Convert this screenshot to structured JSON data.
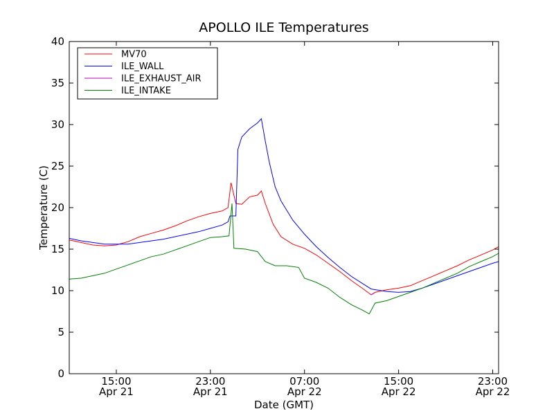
{
  "chart_data": {
    "type": "line",
    "title": "APOLLO ILE Temperatures",
    "xlabel": "Date (GMT)",
    "ylabel": "Temperature (C)",
    "xlim": [
      "Apr 21 11:00",
      "Apr 22 23:30"
    ],
    "ylim": [
      0,
      40
    ],
    "yticks": [
      0,
      5,
      10,
      15,
      20,
      25,
      30,
      35,
      40
    ],
    "xticks": [
      {
        "time": "Apr 21 15:00",
        "line1": "15:00",
        "line2": "Apr 21"
      },
      {
        "time": "Apr 21 23:00",
        "line1": "23:00",
        "line2": "Apr 21"
      },
      {
        "time": "Apr 22 07:00",
        "line1": "07:00",
        "line2": "Apr 22"
      },
      {
        "time": "Apr 22 15:00",
        "line1": "15:00",
        "line2": "Apr 22"
      },
      {
        "time": "Apr 22 23:00",
        "line1": "23:00",
        "line2": "Apr 22"
      }
    ],
    "grid": false,
    "legend_position": "top-left",
    "series": [
      {
        "name": "MV70",
        "color": "#ff0000",
        "points": [
          [
            "Apr 21 11:00",
            16.1
          ],
          [
            "Apr 21 12:00",
            15.8
          ],
          [
            "Apr 21 13:00",
            15.5
          ],
          [
            "Apr 21 14:00",
            15.4
          ],
          [
            "Apr 21 15:00",
            15.5
          ],
          [
            "Apr 21 16:00",
            15.9
          ],
          [
            "Apr 21 17:00",
            16.5
          ],
          [
            "Apr 21 18:00",
            16.9
          ],
          [
            "Apr 21 19:00",
            17.3
          ],
          [
            "Apr 21 20:00",
            17.8
          ],
          [
            "Apr 21 21:00",
            18.4
          ],
          [
            "Apr 21 22:00",
            18.9
          ],
          [
            "Apr 21 23:00",
            19.3
          ],
          [
            "Apr 22 00:00",
            19.6
          ],
          [
            "Apr 22 00:30",
            20.0
          ],
          [
            "Apr 22 00:45",
            23.0
          ],
          [
            "Apr 22 01:10",
            20.5
          ],
          [
            "Apr 22 01:40",
            20.4
          ],
          [
            "Apr 22 02:20",
            21.3
          ],
          [
            "Apr 22 03:00",
            21.5
          ],
          [
            "Apr 22 03:20",
            22.0
          ],
          [
            "Apr 22 03:40",
            20.5
          ],
          [
            "Apr 22 04:20",
            18.0
          ],
          [
            "Apr 22 05:00",
            16.5
          ],
          [
            "Apr 22 06:00",
            15.6
          ],
          [
            "Apr 22 07:00",
            15.1
          ],
          [
            "Apr 22 08:00",
            14.3
          ],
          [
            "Apr 22 09:00",
            13.3
          ],
          [
            "Apr 22 10:00",
            12.3
          ],
          [
            "Apr 22 11:00",
            11.2
          ],
          [
            "Apr 22 12:00",
            10.2
          ],
          [
            "Apr 22 12:40",
            9.5
          ],
          [
            "Apr 22 13:00",
            9.8
          ],
          [
            "Apr 22 14:00",
            10.1
          ],
          [
            "Apr 22 15:00",
            10.3
          ],
          [
            "Apr 22 16:00",
            10.6
          ],
          [
            "Apr 22 17:00",
            11.2
          ],
          [
            "Apr 22 18:00",
            11.8
          ],
          [
            "Apr 22 19:00",
            12.4
          ],
          [
            "Apr 22 20:00",
            13.0
          ],
          [
            "Apr 22 21:00",
            13.7
          ],
          [
            "Apr 22 22:00",
            14.3
          ],
          [
            "Apr 22 23:00",
            14.9
          ],
          [
            "Apr 22 23:30",
            15.3
          ]
        ]
      },
      {
        "name": "ILE_WALL",
        "color": "#0000ff",
        "points": [
          [
            "Apr 21 11:00",
            16.3
          ],
          [
            "Apr 21 12:00",
            16.0
          ],
          [
            "Apr 21 13:00",
            15.8
          ],
          [
            "Apr 21 14:00",
            15.6
          ],
          [
            "Apr 21 15:00",
            15.6
          ],
          [
            "Apr 21 16:00",
            15.6
          ],
          [
            "Apr 21 17:00",
            15.8
          ],
          [
            "Apr 21 18:00",
            16.0
          ],
          [
            "Apr 21 19:00",
            16.2
          ],
          [
            "Apr 21 20:00",
            16.5
          ],
          [
            "Apr 21 21:00",
            16.8
          ],
          [
            "Apr 21 22:00",
            17.1
          ],
          [
            "Apr 21 23:00",
            17.5
          ],
          [
            "Apr 22 00:00",
            17.9
          ],
          [
            "Apr 22 00:30",
            18.3
          ],
          [
            "Apr 22 00:40",
            19.0
          ],
          [
            "Apr 22 01:10",
            19.0
          ],
          [
            "Apr 22 01:20",
            27.0
          ],
          [
            "Apr 22 01:40",
            28.5
          ],
          [
            "Apr 22 02:20",
            29.5
          ],
          [
            "Apr 22 03:00",
            30.2
          ],
          [
            "Apr 22 03:20",
            30.7
          ],
          [
            "Apr 22 03:40",
            28.0
          ],
          [
            "Apr 22 04:00",
            25.5
          ],
          [
            "Apr 22 04:30",
            22.5
          ],
          [
            "Apr 22 05:00",
            20.8
          ],
          [
            "Apr 22 06:00",
            18.5
          ],
          [
            "Apr 22 07:00",
            16.8
          ],
          [
            "Apr 22 08:00",
            15.3
          ],
          [
            "Apr 22 09:00",
            14.0
          ],
          [
            "Apr 22 10:00",
            12.8
          ],
          [
            "Apr 22 11:00",
            11.7
          ],
          [
            "Apr 22 12:00",
            10.8
          ],
          [
            "Apr 22 12:40",
            10.2
          ],
          [
            "Apr 22 14:00",
            9.9
          ],
          [
            "Apr 22 15:00",
            9.8
          ],
          [
            "Apr 22 16:00",
            9.9
          ],
          [
            "Apr 22 17:00",
            10.3
          ],
          [
            "Apr 22 18:00",
            10.8
          ],
          [
            "Apr 22 19:00",
            11.3
          ],
          [
            "Apr 22 20:00",
            11.8
          ],
          [
            "Apr 22 21:00",
            12.3
          ],
          [
            "Apr 22 22:00",
            12.8
          ],
          [
            "Apr 22 23:00",
            13.3
          ],
          [
            "Apr 22 23:30",
            13.5
          ]
        ]
      },
      {
        "name": "ILE_EXHAUST_AIR",
        "color": "#bf00bf",
        "points": [
          [
            "Apr 22 12:40",
            9.5
          ],
          [
            "Apr 22 12:55",
            9.7
          ]
        ]
      },
      {
        "name": "ILE_INTAKE",
        "color": "#008000",
        "points": [
          [
            "Apr 21 11:00",
            11.4
          ],
          [
            "Apr 21 12:00",
            11.5
          ],
          [
            "Apr 21 13:00",
            11.8
          ],
          [
            "Apr 21 14:00",
            12.1
          ],
          [
            "Apr 21 15:00",
            12.6
          ],
          [
            "Apr 21 16:00",
            13.1
          ],
          [
            "Apr 21 17:00",
            13.6
          ],
          [
            "Apr 21 18:00",
            14.1
          ],
          [
            "Apr 21 19:00",
            14.4
          ],
          [
            "Apr 21 20:00",
            14.9
          ],
          [
            "Apr 21 21:00",
            15.4
          ],
          [
            "Apr 21 22:00",
            15.9
          ],
          [
            "Apr 21 23:00",
            16.4
          ],
          [
            "Apr 22 00:00",
            16.5
          ],
          [
            "Apr 22 00:35",
            16.6
          ],
          [
            "Apr 22 00:50",
            20.5
          ],
          [
            "Apr 22 01:00",
            15.1
          ],
          [
            "Apr 22 02:00",
            15.0
          ],
          [
            "Apr 22 03:00",
            14.7
          ],
          [
            "Apr 22 03:40",
            13.5
          ],
          [
            "Apr 22 04:30",
            13.0
          ],
          [
            "Apr 22 05:30",
            13.0
          ],
          [
            "Apr 22 06:30",
            12.8
          ],
          [
            "Apr 22 07:00",
            11.5
          ],
          [
            "Apr 22 08:00",
            11.0
          ],
          [
            "Apr 22 09:00",
            10.3
          ],
          [
            "Apr 22 10:00",
            9.2
          ],
          [
            "Apr 22 11:00",
            8.3
          ],
          [
            "Apr 22 12:00",
            7.6
          ],
          [
            "Apr 22 12:30",
            7.2
          ],
          [
            "Apr 22 13:00",
            8.5
          ],
          [
            "Apr 22 14:00",
            8.8
          ],
          [
            "Apr 22 15:00",
            9.3
          ],
          [
            "Apr 22 16:00",
            9.8
          ],
          [
            "Apr 22 17:00",
            10.3
          ],
          [
            "Apr 22 18:00",
            10.9
          ],
          [
            "Apr 22 19:00",
            11.5
          ],
          [
            "Apr 22 20:00",
            12.1
          ],
          [
            "Apr 22 21:00",
            12.9
          ],
          [
            "Apr 22 22:00",
            13.5
          ],
          [
            "Apr 22 23:00",
            14.1
          ],
          [
            "Apr 22 23:30",
            14.5
          ]
        ]
      }
    ]
  }
}
